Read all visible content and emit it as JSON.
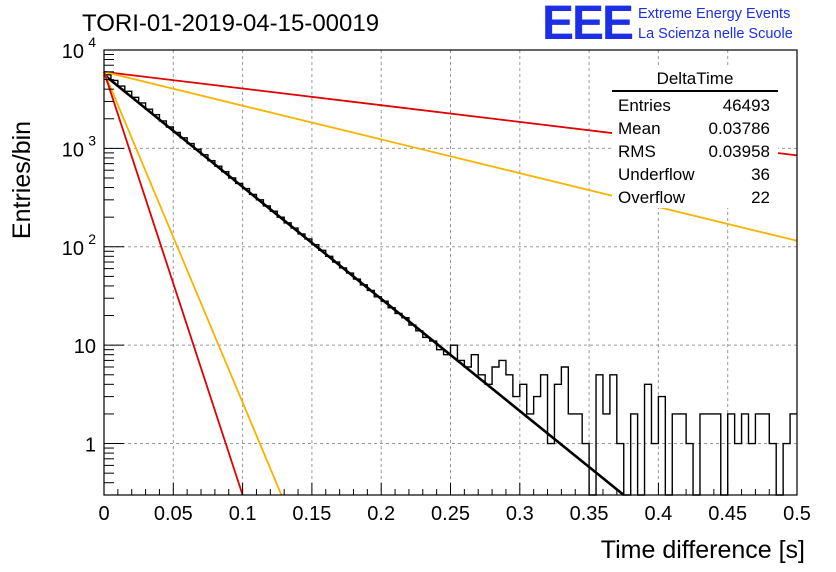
{
  "run_title": "TORI-01-2019-04-15-00019",
  "logo": {
    "mark": "EEE",
    "line1": "Extreme Energy Events",
    "line2": "La Scienza nelle Scuole",
    "color": "#1c2fe6"
  },
  "stats": {
    "title": "DeltaTime",
    "rows": [
      {
        "k": "Entries",
        "v": "46493"
      },
      {
        "k": "Mean",
        "v": "0.03786"
      },
      {
        "k": "RMS",
        "v": "0.03958"
      },
      {
        "k": "Underflow",
        "v": "36"
      },
      {
        "k": "Overflow",
        "v": "22"
      }
    ]
  },
  "chart_data": {
    "type": "line",
    "log_y": true,
    "grid": true,
    "xlabel": "Time difference [s]",
    "ylabel": "Entries/bin",
    "xlim": [
      0,
      0.5
    ],
    "ylim": [
      0.3,
      10000
    ],
    "xticks": [
      "0",
      "0.05",
      "0.1",
      "0.15",
      "0.2",
      "0.25",
      "0.3",
      "0.35",
      "0.4",
      "0.45",
      "0.5"
    ],
    "yticks": [
      {
        "v": 10000,
        "base": "10",
        "exp": "4"
      },
      {
        "v": 1000,
        "base": "10",
        "exp": "3"
      },
      {
        "v": 100,
        "base": "10",
        "exp": "2"
      },
      {
        "v": 10,
        "base": "10",
        "exp": ""
      },
      {
        "v": 1,
        "base": "1",
        "exp": ""
      }
    ],
    "histogram": {
      "color": "#000000",
      "bin_width": 0.005,
      "values": [
        5600,
        4900,
        4300,
        3800,
        3300,
        2900,
        2500,
        2200,
        1900,
        1650,
        1450,
        1280,
        1120,
        980,
        860,
        750,
        660,
        580,
        500,
        440,
        390,
        340,
        300,
        260,
        230,
        200,
        175,
        155,
        135,
        120,
        105,
        92,
        80,
        70,
        61,
        54,
        47,
        41,
        36,
        31,
        28,
        24,
        21,
        19,
        16,
        14,
        12,
        11,
        9,
        8,
        10,
        7,
        6,
        8,
        5,
        4,
        6,
        7,
        5,
        3,
        4,
        2,
        3,
        5,
        1,
        4,
        6,
        2,
        2,
        1,
        0,
        5,
        2,
        5,
        1,
        0,
        2,
        0,
        4,
        1,
        3,
        0,
        2,
        2,
        1,
        0,
        2,
        2,
        2,
        0,
        2,
        1,
        2,
        1,
        2,
        2,
        1,
        0,
        1,
        2
      ]
    },
    "series": [
      {
        "color": "#000000",
        "width": 2.6,
        "x": [
          0,
          0.375
        ],
        "y": [
          5600,
          0.3
        ]
      },
      {
        "color": "#e00000",
        "width": 1.8,
        "x": [
          0,
          0.5
        ],
        "y": [
          6000,
          850
        ]
      },
      {
        "color": "#f5b400",
        "width": 1.8,
        "x": [
          0,
          0.5
        ],
        "y": [
          6000,
          115
        ]
      },
      {
        "color": "#f5b400",
        "width": 1.8,
        "x": [
          0,
          0.128
        ],
        "y": [
          6000,
          0.3
        ]
      },
      {
        "color": "#e00000",
        "width": 1.8,
        "x": [
          0,
          0.1
        ],
        "y": [
          6000,
          0.3
        ]
      }
    ]
  }
}
